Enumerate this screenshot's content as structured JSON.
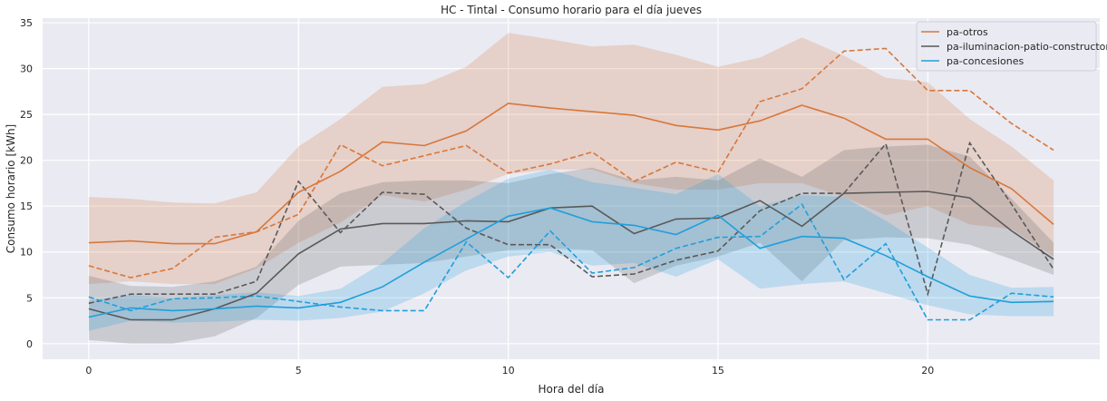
{
  "chart_data": {
    "type": "line",
    "title": "HC - Tintal - Consumo horario para el día jueves",
    "xlabel": "Hora del día",
    "ylabel": "Consumo horario [kWh]",
    "xlim": [
      -1.1,
      24.1
    ],
    "ylim": [
      -1.7,
      35.5
    ],
    "xticks": [
      0,
      5,
      10,
      15,
      20
    ],
    "yticks": [
      0,
      5,
      10,
      15,
      20,
      25,
      30,
      35
    ],
    "grid": true,
    "legend_position": "top-right",
    "x": [
      0,
      1,
      2,
      3,
      4,
      5,
      6,
      7,
      8,
      9,
      10,
      11,
      12,
      13,
      14,
      15,
      16,
      17,
      18,
      19,
      20,
      21,
      22,
      23
    ],
    "series": [
      {
        "name": "pa-otros",
        "color": "#d8773a",
        "mean": [
          11.0,
          11.2,
          10.9,
          10.9,
          12.2,
          16.5,
          18.8,
          22.0,
          21.6,
          23.2,
          26.2,
          25.7,
          25.3,
          24.9,
          23.8,
          23.3,
          24.3,
          26.0,
          24.6,
          22.3,
          22.3,
          19.2,
          16.9,
          13.0
        ],
        "lower": [
          6.5,
          6.8,
          6.5,
          6.5,
          8.2,
          11.0,
          13.2,
          16.2,
          15.5,
          16.8,
          18.5,
          19.0,
          19.0,
          17.5,
          16.8,
          16.8,
          17.5,
          17.5,
          16.0,
          14.0,
          15.0,
          13.0,
          12.5,
          9.5
        ],
        "upper": [
          16.0,
          15.8,
          15.4,
          15.3,
          16.5,
          21.5,
          24.5,
          28.0,
          28.3,
          30.2,
          33.9,
          33.2,
          32.4,
          32.6,
          31.5,
          30.2,
          31.2,
          33.4,
          31.4,
          29.0,
          28.5,
          24.5,
          21.5,
          17.8
        ],
        "dashed": [
          8.5,
          7.2,
          8.2,
          11.6,
          12.2,
          14.1,
          21.7,
          19.4,
          20.5,
          21.6,
          18.6,
          19.6,
          20.9,
          17.7,
          19.8,
          18.7,
          26.4,
          27.8,
          31.9,
          32.2,
          27.6,
          27.6,
          24.0,
          21.1
        ]
      },
      {
        "name": "pa-iluminacion-patio-constructor",
        "color": "#595959",
        "mean": [
          3.8,
          2.6,
          2.6,
          3.8,
          5.5,
          9.8,
          12.5,
          13.1,
          13.1,
          13.4,
          13.3,
          14.8,
          15.0,
          12.0,
          13.6,
          13.7,
          15.6,
          12.8,
          16.4,
          16.5,
          16.6,
          15.9,
          12.3,
          9.2
        ],
        "lower": [
          0.4,
          0.0,
          0.0,
          0.8,
          2.8,
          6.4,
          8.4,
          8.6,
          8.8,
          9.5,
          10.2,
          10.4,
          10.2,
          6.6,
          8.5,
          9.5,
          11.0,
          6.8,
          11.3,
          11.6,
          11.5,
          10.8,
          9.2,
          7.5
        ],
        "upper": [
          7.4,
          6.3,
          6.2,
          6.8,
          8.4,
          13.4,
          16.4,
          17.6,
          17.8,
          17.8,
          17.5,
          18.5,
          19.2,
          17.8,
          18.2,
          17.8,
          20.2,
          18.2,
          21.1,
          21.5,
          21.7,
          20.4,
          15.8,
          11.0
        ],
        "dashed": [
          4.4,
          5.4,
          5.4,
          5.4,
          6.8,
          17.7,
          12.1,
          16.5,
          16.3,
          12.6,
          10.8,
          10.8,
          7.3,
          7.6,
          9.1,
          10.1,
          14.5,
          16.4,
          16.4,
          21.8,
          5.4,
          21.9,
          15.2,
          8.1
        ]
      },
      {
        "name": "pa-concesiones",
        "color": "#1f9fdb",
        "mean": [
          2.9,
          3.9,
          3.6,
          3.8,
          4.1,
          3.9,
          4.5,
          6.2,
          8.9,
          11.4,
          13.9,
          14.8,
          13.3,
          12.9,
          11.9,
          14.0,
          10.4,
          11.7,
          11.5,
          9.6,
          7.3,
          5.2,
          4.5,
          4.6
        ],
        "lower": [
          1.4,
          2.5,
          2.3,
          2.4,
          2.6,
          2.5,
          2.8,
          3.5,
          5.5,
          8.0,
          9.5,
          10.0,
          8.5,
          8.8,
          7.3,
          9.2,
          6.0,
          6.5,
          6.8,
          5.5,
          4.2,
          3.2,
          3.0,
          3.0
        ],
        "upper": [
          4.7,
          5.3,
          5.0,
          5.3,
          5.6,
          5.2,
          6.0,
          8.8,
          12.6,
          15.5,
          18.0,
          19.0,
          17.6,
          17.0,
          16.3,
          18.5,
          15.0,
          16.2,
          16.0,
          13.4,
          10.5,
          7.5,
          6.1,
          6.2
        ],
        "dashed": [
          5.1,
          3.6,
          4.9,
          5.0,
          5.2,
          4.6,
          4.0,
          3.6,
          3.6,
          11.1,
          7.2,
          12.3,
          7.7,
          8.3,
          10.4,
          11.6,
          11.7,
          15.2,
          7.0,
          10.9,
          2.6,
          2.6,
          5.5,
          5.1
        ]
      }
    ]
  }
}
